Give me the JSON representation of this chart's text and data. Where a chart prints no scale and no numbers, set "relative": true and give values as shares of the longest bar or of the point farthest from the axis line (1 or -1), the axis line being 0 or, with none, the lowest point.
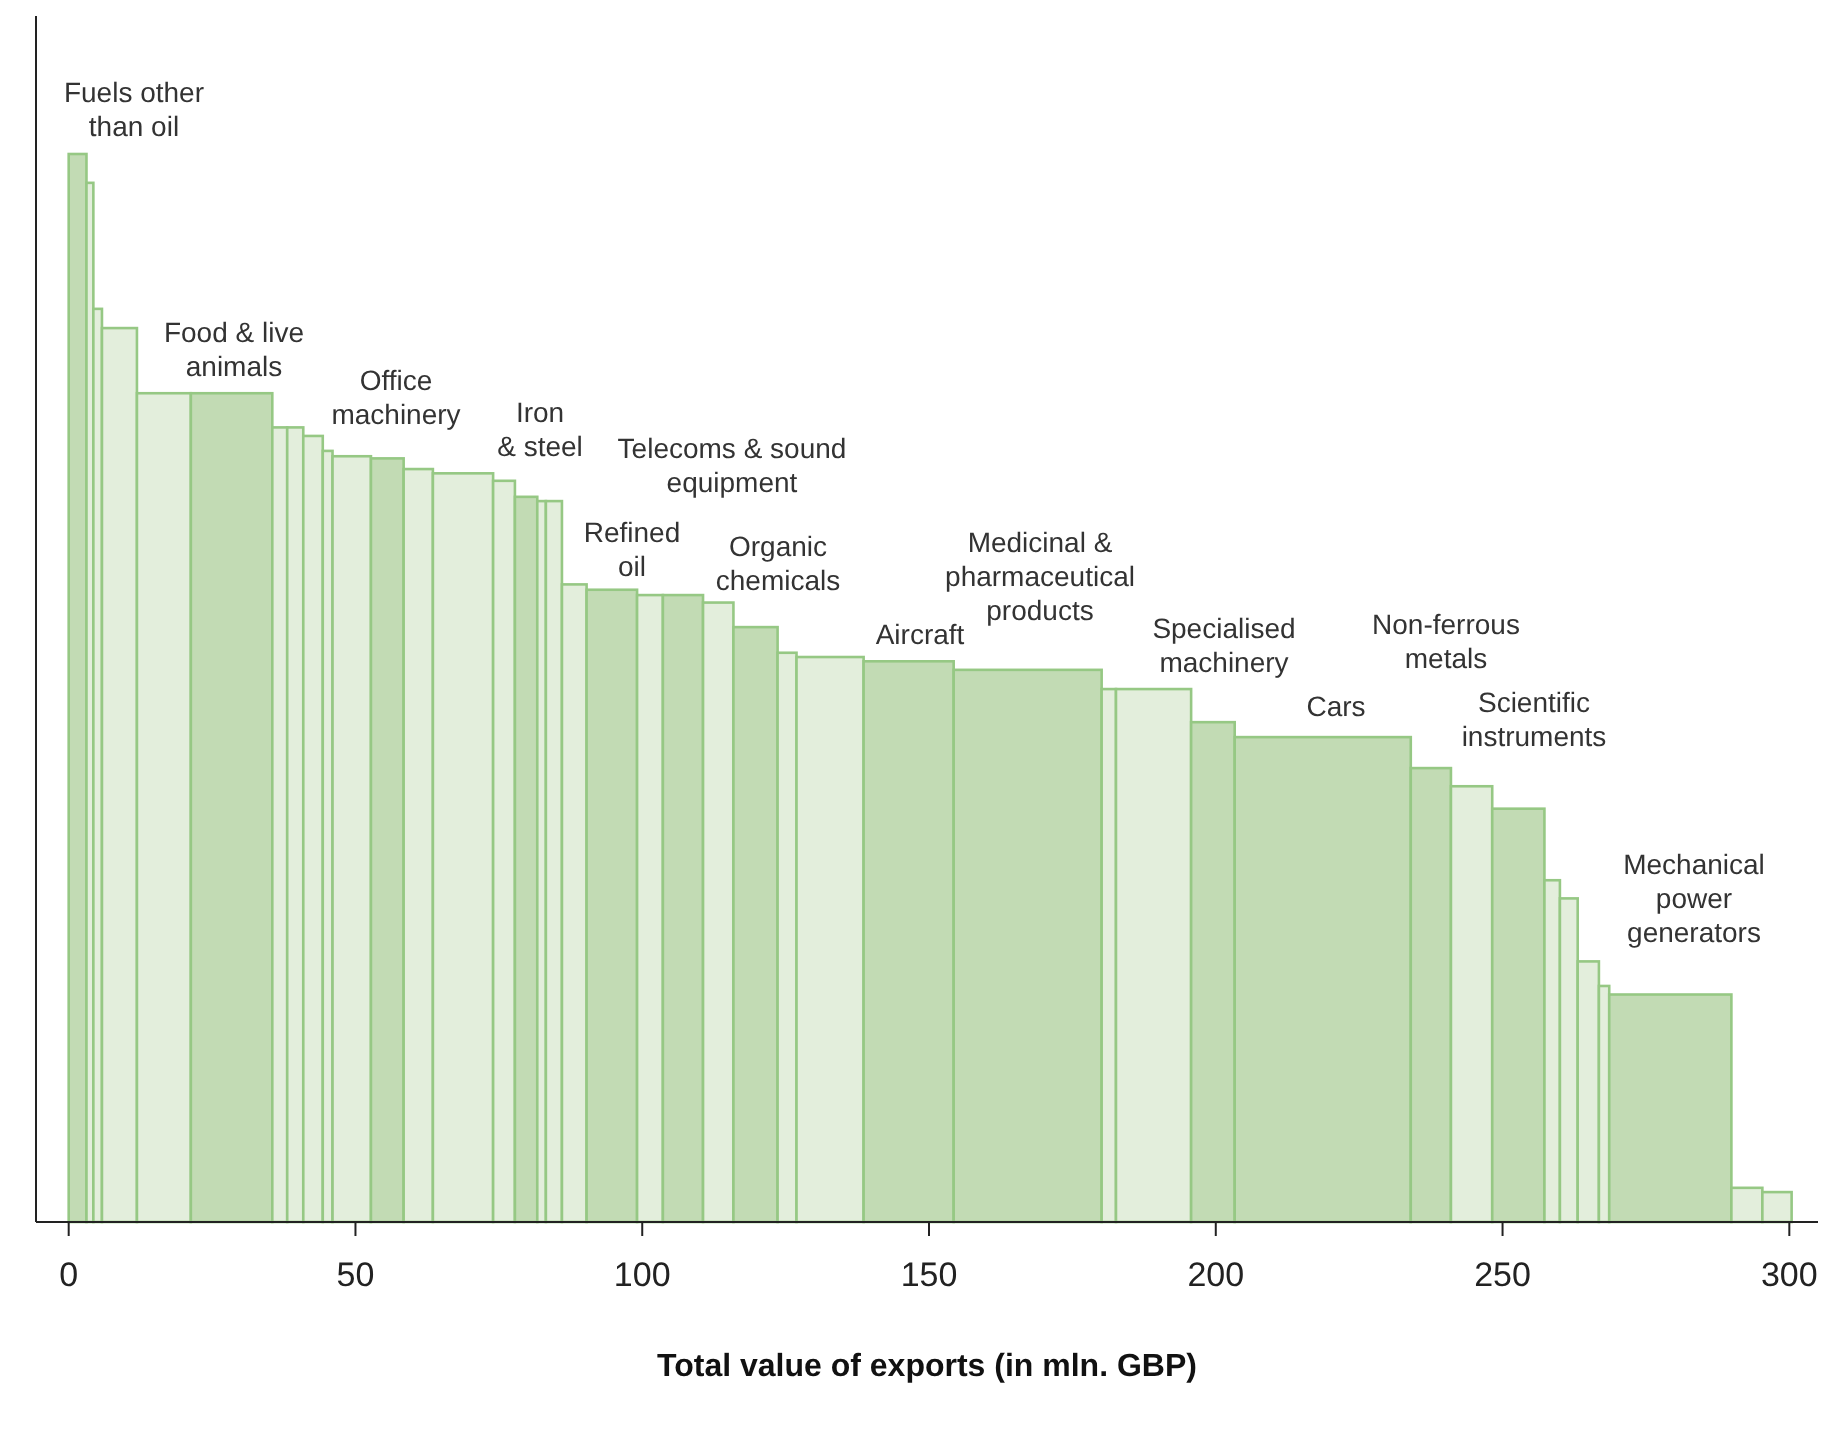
{
  "chart_data": {
    "type": "bar",
    "relative": true,
    "xlabel": "Total value of exports (in mln. GBP)",
    "xlim": [
      -5.7,
      305
    ],
    "xticks": [
      0,
      50,
      100,
      150,
      200,
      250,
      300
    ],
    "x": [
      1.55,
      3.7,
      5.05,
      8.85,
      16.6,
      28.4,
      36.8,
      39.5,
      42.6,
      45.15,
      49.35,
      55.55,
      60.95,
      68.75,
      75.9,
      79.75,
      82.45,
      84.6,
      88.15,
      94.7,
      101.35,
      107.1,
      113.25,
      119.75,
      125.25,
      132.75,
      146.45,
      167.2,
      181.35,
      189.15,
      199.5,
      218.65,
      237.5,
      244.6,
      252.75,
      258.65,
      261.55,
      264.95,
      267.7,
      279.25,
      292.6,
      297.85
    ],
    "values": [
      1.0,
      0.973,
      0.855,
      0.837,
      0.776,
      0.776,
      0.744,
      0.744,
      0.736,
      0.722,
      0.717,
      0.715,
      0.705,
      0.701,
      0.694,
      0.679,
      0.675,
      0.675,
      0.597,
      0.592,
      0.587,
      0.587,
      0.58,
      0.557,
      0.533,
      0.529,
      0.525,
      0.517,
      0.499,
      0.499,
      0.468,
      0.454,
      0.425,
      0.408,
      0.387,
      0.32,
      0.303,
      0.244,
      0.221,
      0.213,
      0.032,
      0.028
    ],
    "colors": [
      "#c2dbb4",
      "#e3eedc",
      "#e3eedc",
      "#e3eedc",
      "#e3eedc",
      "#c2dbb4",
      "#e3eedc",
      "#e3eedc",
      "#e3eedc",
      "#e3eedc",
      "#e3eedc",
      "#c2dbb4",
      "#e3eedc",
      "#e3eedc",
      "#e3eedc",
      "#c2dbb4",
      "#e3eedc",
      "#e3eedc",
      "#e3eedc",
      "#c2dbb4",
      "#e3eedc",
      "#c2dbb4",
      "#e3eedc",
      "#c2dbb4",
      "#e3eedc",
      "#e3eedc",
      "#c2dbb4",
      "#c2dbb4",
      "#e3eedc",
      "#e3eedc",
      "#c2dbb4",
      "#c2dbb4",
      "#c2dbb4",
      "#e3eedc",
      "#c2dbb4",
      "#e3eedc",
      "#e3eedc",
      "#e3eedc",
      "#e3eedc",
      "#c2dbb4",
      "#e3eedc",
      "#e3eedc"
    ],
    "annotations": [
      "Fuels other\nthan oil",
      "Food & live\nanimals",
      "Office\nmachinery",
      "Iron\n& steel",
      "Telecoms & sound\nequipment",
      "Refined\noil",
      "Organic\nchemicals",
      "Aircraft",
      "Medicinal &\npharmaceutical\nproducts",
      "Specialised\nmachinery",
      "Non-ferrous\nmetals",
      "Cars",
      "Scientific\ninstruments",
      "Mechanical\npower\ngenerators"
    ]
  }
}
